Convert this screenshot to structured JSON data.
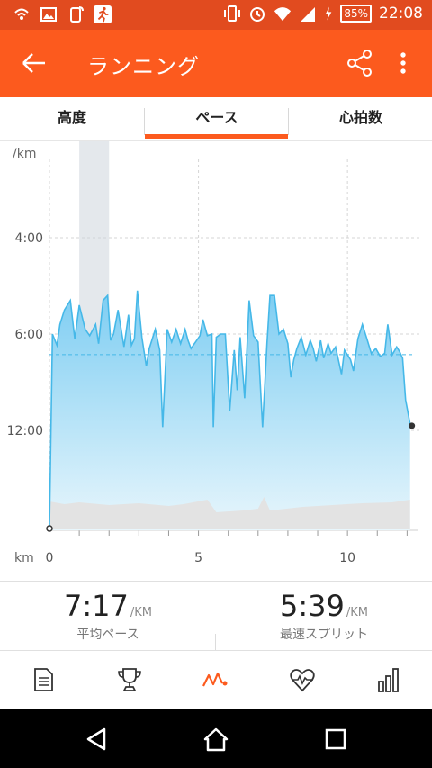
{
  "status_bar": {
    "battery": "85%",
    "time": "22:08",
    "icons": [
      "wifi-calling-icon",
      "gallery-icon",
      "rotate-icon",
      "runner-app-icon",
      "vibrate-icon",
      "alarm-icon",
      "wifi-icon",
      "signal-icon",
      "charging-icon"
    ]
  },
  "app_bar": {
    "title": "ランニング",
    "icons": [
      "back-arrow-icon",
      "share-icon",
      "more-vert-icon"
    ]
  },
  "tabs": [
    {
      "label": "高度"
    },
    {
      "label": "ペース",
      "selected": true
    },
    {
      "label": "心拍数"
    }
  ],
  "colors": {
    "accent": "#fc5a1e",
    "status_bar": "#e14b1f",
    "pace_line": "#45b8e8",
    "pace_fill": "#8fd3f3",
    "elevation_fill": "#e2e2e2",
    "highlight_band": "#cfd8df"
  },
  "chart_data": {
    "type": "area",
    "y_unit_label": "/km",
    "x_unit_label": "km",
    "x_ticks": [
      {
        "value": 0,
        "label": "0"
      },
      {
        "value": 5,
        "label": "5"
      },
      {
        "value": 10,
        "label": "10"
      }
    ],
    "y_ticks": [
      {
        "value": 4,
        "label": "4:00"
      },
      {
        "value": 6,
        "label": "6:00"
      },
      {
        "value": 12,
        "label": "12:00"
      }
    ],
    "xlim": [
      0,
      12.2
    ],
    "average_pace": 7.28,
    "highlight_range_km": [
      1.0,
      2.0
    ],
    "series": [
      {
        "values": [
          [
            0.0,
            99
          ],
          [
            0.1,
            6.0
          ],
          [
            0.25,
            6.7
          ],
          [
            0.35,
            5.8
          ],
          [
            0.5,
            5.5
          ],
          [
            0.7,
            5.3
          ],
          [
            0.85,
            6.3
          ],
          [
            1.0,
            5.4
          ],
          [
            1.2,
            5.9
          ],
          [
            1.35,
            6.1
          ],
          [
            1.55,
            5.8
          ],
          [
            1.65,
            6.6
          ],
          [
            1.8,
            5.3
          ],
          [
            1.95,
            5.2
          ],
          [
            2.05,
            6.4
          ],
          [
            2.15,
            6.0
          ],
          [
            2.3,
            5.5
          ],
          [
            2.5,
            6.8
          ],
          [
            2.65,
            5.6
          ],
          [
            2.75,
            6.7
          ],
          [
            2.85,
            6.3
          ],
          [
            2.95,
            5.1
          ],
          [
            3.1,
            6.2
          ],
          [
            3.25,
            8.0
          ],
          [
            3.35,
            6.9
          ],
          [
            3.55,
            5.9
          ],
          [
            3.7,
            7.0
          ],
          [
            3.8,
            11.8
          ],
          [
            3.95,
            5.9
          ],
          [
            4.1,
            6.5
          ],
          [
            4.25,
            5.9
          ],
          [
            4.4,
            6.6
          ],
          [
            4.55,
            5.9
          ],
          [
            4.65,
            6.4
          ],
          [
            4.75,
            6.9
          ],
          [
            4.9,
            6.5
          ],
          [
            5.05,
            6.1
          ],
          [
            5.15,
            5.7
          ],
          [
            5.3,
            6.1
          ],
          [
            5.45,
            6.0
          ],
          [
            5.5,
            11.8
          ],
          [
            5.6,
            6.2
          ],
          [
            5.75,
            6.0
          ],
          [
            5.9,
            6.0
          ],
          [
            6.05,
            10.8
          ],
          [
            6.2,
            7.0
          ],
          [
            6.3,
            9.5
          ],
          [
            6.4,
            6.2
          ],
          [
            6.55,
            10.0
          ],
          [
            6.7,
            5.3
          ],
          [
            6.85,
            6.1
          ],
          [
            7.0,
            6.5
          ],
          [
            7.15,
            11.8
          ],
          [
            7.3,
            6.6
          ],
          [
            7.4,
            5.2
          ],
          [
            7.55,
            5.2
          ],
          [
            7.7,
            6.0
          ],
          [
            7.85,
            5.9
          ],
          [
            8.0,
            6.6
          ],
          [
            8.1,
            8.7
          ],
          [
            8.2,
            7.6
          ],
          [
            8.3,
            6.9
          ],
          [
            8.45,
            6.2
          ],
          [
            8.6,
            7.3
          ],
          [
            8.75,
            6.4
          ],
          [
            8.85,
            6.9
          ],
          [
            8.95,
            7.7
          ],
          [
            9.1,
            6.4
          ],
          [
            9.2,
            7.5
          ],
          [
            9.35,
            6.6
          ],
          [
            9.45,
            7.2
          ],
          [
            9.6,
            6.8
          ],
          [
            9.8,
            8.5
          ],
          [
            9.9,
            7.0
          ],
          [
            10.1,
            7.6
          ],
          [
            10.2,
            8.3
          ],
          [
            10.35,
            6.3
          ],
          [
            10.5,
            5.8
          ],
          [
            10.65,
            6.3
          ],
          [
            10.8,
            7.2
          ],
          [
            10.95,
            6.9
          ],
          [
            11.1,
            7.4
          ],
          [
            11.25,
            7.2
          ],
          [
            11.35,
            5.8
          ],
          [
            11.5,
            7.3
          ],
          [
            11.65,
            6.8
          ],
          [
            11.75,
            7.1
          ],
          [
            11.85,
            7.5
          ],
          [
            11.95,
            10.1
          ],
          [
            12.1,
            11.6
          ]
        ]
      }
    ],
    "elevation_band": true
  },
  "stats": {
    "average_pace": {
      "value": "7:17",
      "unit": "/KM",
      "label": "平均ペース"
    },
    "fastest_split": {
      "value": "5:39",
      "unit": "/KM",
      "label": "最速スプリット"
    }
  },
  "bottom_nav": [
    {
      "icon": "summary-document-icon",
      "selected": false
    },
    {
      "icon": "trophy-icon",
      "selected": false
    },
    {
      "icon": "analysis-chart-icon",
      "selected": true
    },
    {
      "icon": "heart-rate-icon",
      "selected": false
    },
    {
      "icon": "bar-stats-icon",
      "selected": false
    }
  ]
}
